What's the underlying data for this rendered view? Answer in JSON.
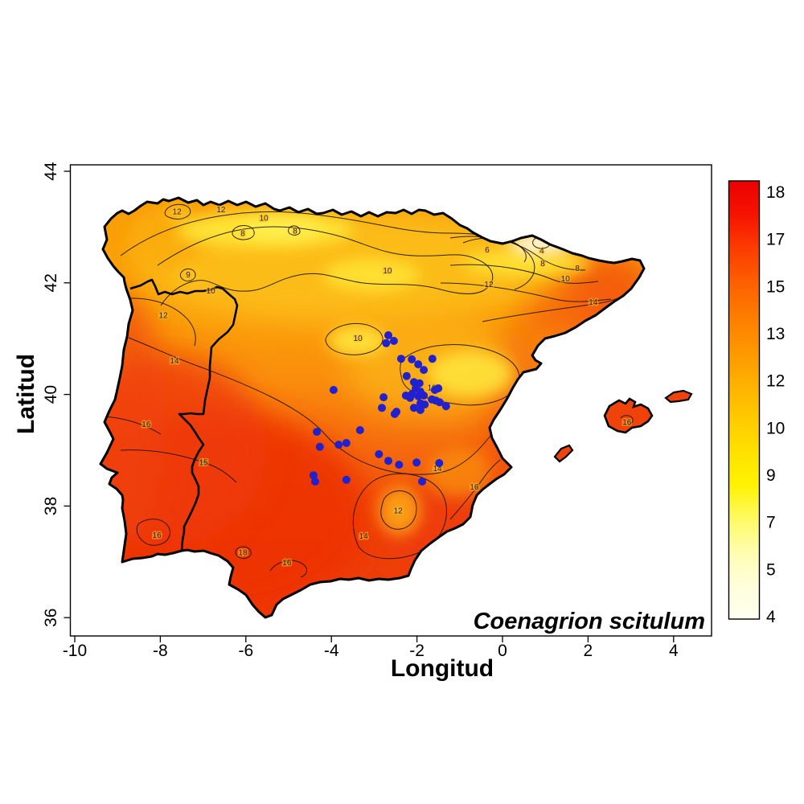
{
  "figure": {
    "background": "#FFFFFF",
    "region": "Iberian Peninsula"
  },
  "chart_data": {
    "type": "heatmap",
    "subtype": "filled contour map (interpolated surface) with species occurrence points",
    "annotation": "Coenagrion scitulum",
    "xlabel": "Longitud",
    "ylabel": "Latitud",
    "x_ticks": [
      "-10",
      "-8",
      "-6",
      "-4",
      "-2",
      "0",
      "2",
      "4"
    ],
    "x_tick_values": [
      -10,
      -8,
      -6,
      -4,
      -2,
      0,
      2,
      4
    ],
    "y_ticks": [
      "36",
      "38",
      "40",
      "42",
      "44"
    ],
    "y_tick_values": [
      36,
      38,
      40,
      42,
      44
    ],
    "xlim": [
      -10.1,
      4.9
    ],
    "ylim": [
      35.7,
      44.1
    ],
    "grid": false,
    "colorbar": {
      "position": "right",
      "min": 4,
      "max": 18,
      "labels_top_to_bottom": [
        "18",
        "17",
        "15",
        "13",
        "12",
        "10",
        "9",
        "7",
        "5",
        "4"
      ],
      "gradient_top_to_bottom": [
        "#EB0000",
        "#F61300",
        "#FC3C00",
        "#FD5F00",
        "#FD7C00",
        "#FE9600",
        "#FEB000",
        "#FFC900",
        "#FFE000",
        "#FFF200",
        "#FFFA60",
        "#FFFDAE",
        "#FFFEDC",
        "#FFFFF0"
      ]
    },
    "contour_levels_labeled": [
      4,
      6,
      8,
      9,
      10,
      12,
      14,
      15,
      16,
      18
    ],
    "contour_labels": [
      {
        "value": "12",
        "lon": -7.61,
        "lat": 43.27
      },
      {
        "value": "12",
        "lon": -6.58,
        "lat": 43.31
      },
      {
        "value": "10",
        "lon": -5.58,
        "lat": 43.16
      },
      {
        "value": "8",
        "lon": -6.07,
        "lat": 42.88
      },
      {
        "value": "8",
        "lon": -4.85,
        "lat": 42.93
      },
      {
        "value": "9",
        "lon": -7.35,
        "lat": 42.14
      },
      {
        "value": "10",
        "lon": -6.82,
        "lat": 41.85
      },
      {
        "value": "12",
        "lon": -7.93,
        "lat": 41.41
      },
      {
        "value": "10",
        "lon": -2.69,
        "lat": 42.21
      },
      {
        "value": "6",
        "lon": -0.36,
        "lat": 42.59
      },
      {
        "value": "4",
        "lon": 0.92,
        "lat": 42.57
      },
      {
        "value": "8",
        "lon": 0.94,
        "lat": 42.34
      },
      {
        "value": "8",
        "lon": 1.75,
        "lat": 42.26
      },
      {
        "value": "10",
        "lon": 1.47,
        "lat": 42.07
      },
      {
        "value": "12",
        "lon": -0.32,
        "lat": 41.97
      },
      {
        "value": "14",
        "lon": 2.12,
        "lat": 41.65
      },
      {
        "value": "10",
        "lon": -3.38,
        "lat": 41.0
      },
      {
        "value": "10",
        "lon": -1.65,
        "lat": 40.12
      },
      {
        "value": "14",
        "lon": -7.67,
        "lat": 40.6
      },
      {
        "value": "16",
        "lon": -8.33,
        "lat": 39.46
      },
      {
        "value": "15",
        "lon": -6.99,
        "lat": 38.78
      },
      {
        "value": "16",
        "lon": -8.08,
        "lat": 37.47
      },
      {
        "value": "18",
        "lon": -6.07,
        "lat": 37.16
      },
      {
        "value": "16",
        "lon": -5.04,
        "lat": 36.98
      },
      {
        "value": "14",
        "lon": -3.25,
        "lat": 37.46
      },
      {
        "value": "14",
        "lon": -1.52,
        "lat": 38.67
      },
      {
        "value": "16",
        "lon": -0.66,
        "lat": 38.34
      },
      {
        "value": "12",
        "lon": -2.44,
        "lat": 37.91
      },
      {
        "value": "16",
        "lon": 2.91,
        "lat": 39.5
      }
    ],
    "occurrence_points": {
      "species": "Coenagrion scitulum",
      "marker": "filled-circle",
      "color": "#2121CE",
      "radius_px": 5,
      "coordinates_lon_lat": [
        [
          -2.67,
          41.06
        ],
        [
          -2.54,
          40.96
        ],
        [
          -2.72,
          40.92
        ],
        [
          -2.37,
          40.64
        ],
        [
          -2.12,
          40.63
        ],
        [
          -1.64,
          40.64
        ],
        [
          -1.97,
          40.54
        ],
        [
          -1.84,
          40.44
        ],
        [
          -2.24,
          40.33
        ],
        [
          -2.07,
          40.22
        ],
        [
          -1.94,
          40.2
        ],
        [
          -2.03,
          40.11
        ],
        [
          -1.92,
          40.05
        ],
        [
          -2.11,
          40.01
        ],
        [
          -1.97,
          39.97
        ],
        [
          -1.84,
          39.98
        ],
        [
          -2.26,
          39.98
        ],
        [
          -2.16,
          39.94
        ],
        [
          -1.5,
          40.11
        ],
        [
          -1.65,
          39.91
        ],
        [
          -1.56,
          39.89
        ],
        [
          -1.47,
          39.86
        ],
        [
          -1.92,
          39.84
        ],
        [
          -1.82,
          39.82
        ],
        [
          -2.07,
          39.76
        ],
        [
          -1.92,
          39.72
        ],
        [
          -1.32,
          39.79
        ],
        [
          -2.48,
          39.69
        ],
        [
          -3.95,
          40.08
        ],
        [
          -1.58,
          40.08
        ],
        [
          -2.78,
          39.95
        ],
        [
          -2.82,
          39.76
        ],
        [
          -2.52,
          39.65
        ],
        [
          -4.34,
          39.33
        ],
        [
          -3.33,
          39.36
        ],
        [
          -4.27,
          39.06
        ],
        [
          -3.83,
          39.1
        ],
        [
          -3.65,
          39.13
        ],
        [
          -2.89,
          38.93
        ],
        [
          -2.67,
          38.81
        ],
        [
          -2.42,
          38.74
        ],
        [
          -2.01,
          38.78
        ],
        [
          -1.48,
          38.77
        ],
        [
          -4.42,
          38.55
        ],
        [
          -4.38,
          38.44
        ],
        [
          -3.65,
          38.47
        ],
        [
          -1.88,
          38.44
        ]
      ]
    }
  }
}
